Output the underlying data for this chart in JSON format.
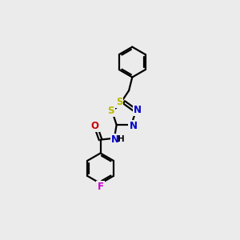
{
  "background_color": "#ebebeb",
  "line_color": "#000000",
  "bond_lw": 1.6,
  "atom_colors": {
    "S": "#b8b800",
    "N": "#0000cc",
    "O": "#cc0000",
    "F": "#cc00cc",
    "H": "#000000",
    "C": "#000000"
  },
  "figsize": [
    3.0,
    3.0
  ],
  "dpi": 100,
  "bg": "#ebebeb"
}
